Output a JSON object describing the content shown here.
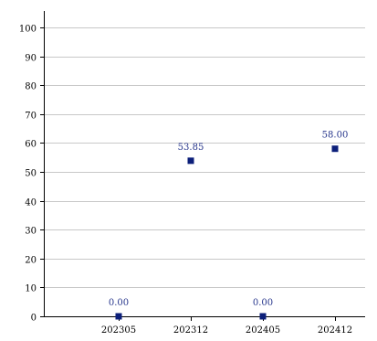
{
  "chart_data": {
    "type": "scatter",
    "title": "",
    "xlabel": "",
    "ylabel": "",
    "categories": [
      "202305",
      "202312",
      "202405",
      "202412"
    ],
    "values": [
      0.0,
      53.85,
      0.0,
      58.0
    ],
    "data_labels": [
      "0.00",
      "53.85",
      "0.00",
      "58.00"
    ],
    "ylim": [
      0,
      100
    ],
    "yticks": [
      0,
      10,
      20,
      30,
      40,
      50,
      60,
      70,
      80,
      90,
      100
    ],
    "grid": true,
    "legend": "none",
    "colors": {
      "marker": "#0c1f7a",
      "label": "#27368c",
      "grid": "#c8c8c8",
      "axis": "#000000",
      "tick_text": "#000000"
    }
  }
}
